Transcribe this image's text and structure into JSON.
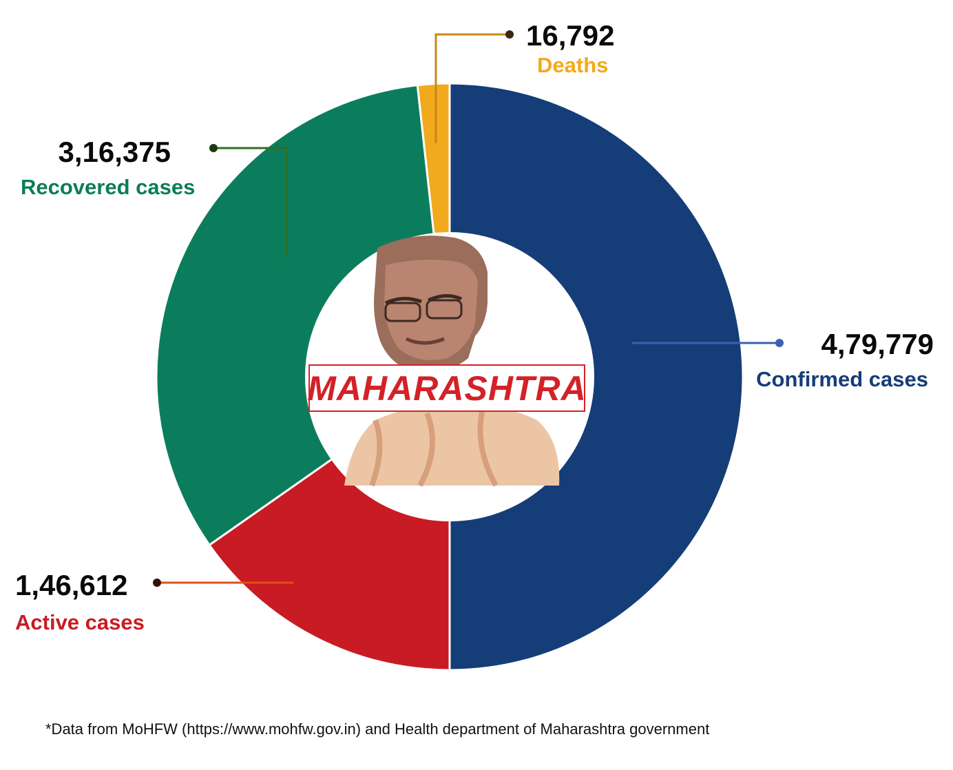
{
  "chart_data": {
    "type": "pie",
    "variant": "donut",
    "center_label": "MAHARASHTRA",
    "slices": [
      {
        "value": 479779,
        "value_label": "4,79,779",
        "label": "Confirmed cases",
        "color": "#153d78"
      },
      {
        "value": 146612,
        "value_label": "1,46,612",
        "label": "Active cases",
        "color": "#c81b23"
      },
      {
        "value": 316375,
        "value_label": "3,16,375",
        "label": "Recovered cases",
        "color": "#0c7d5c"
      },
      {
        "value": 16792,
        "value_label": "16,792",
        "label": "Deaths",
        "color": "#f2a91d"
      }
    ]
  },
  "colors": {
    "recovered_leader": "#2f6e1e",
    "active_leader": "#e24e1c",
    "confirmed_leader": "#3a62b0",
    "deaths_leader": "#c9871a",
    "portrait_skin": "#ecc6a4",
    "portrait_shade": "#a86c52"
  },
  "center_image": {
    "icon": "portrait-icon"
  },
  "footnote": "*Data from MoHFW (https://www.mohfw.gov.in) and Health department of Maharashtra government"
}
